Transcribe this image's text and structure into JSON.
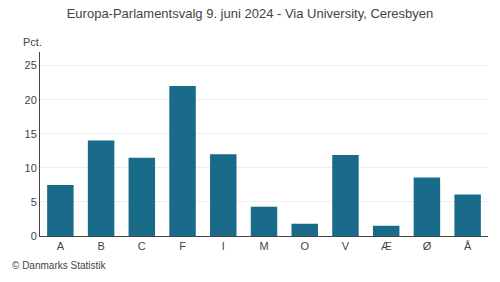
{
  "chart_data": {
    "type": "bar",
    "title": "Europa-Parlamentsvalg 9. juni 2024 - Via University, Ceresbyen",
    "categories": [
      "A",
      "B",
      "C",
      "F",
      "I",
      "M",
      "O",
      "V",
      "Æ",
      "Ø",
      "Å"
    ],
    "values": [
      7.5,
      14.0,
      11.5,
      22.0,
      12.0,
      4.3,
      1.8,
      11.9,
      1.5,
      8.6,
      6.1
    ],
    "color": "#1a6b8a",
    "ylim": [
      0,
      27
    ],
    "yticks": [
      0,
      5,
      10,
      15,
      20,
      25
    ],
    "ylabel": "Pct.",
    "footer": "© Danmarks Statistik",
    "grid": true
  }
}
